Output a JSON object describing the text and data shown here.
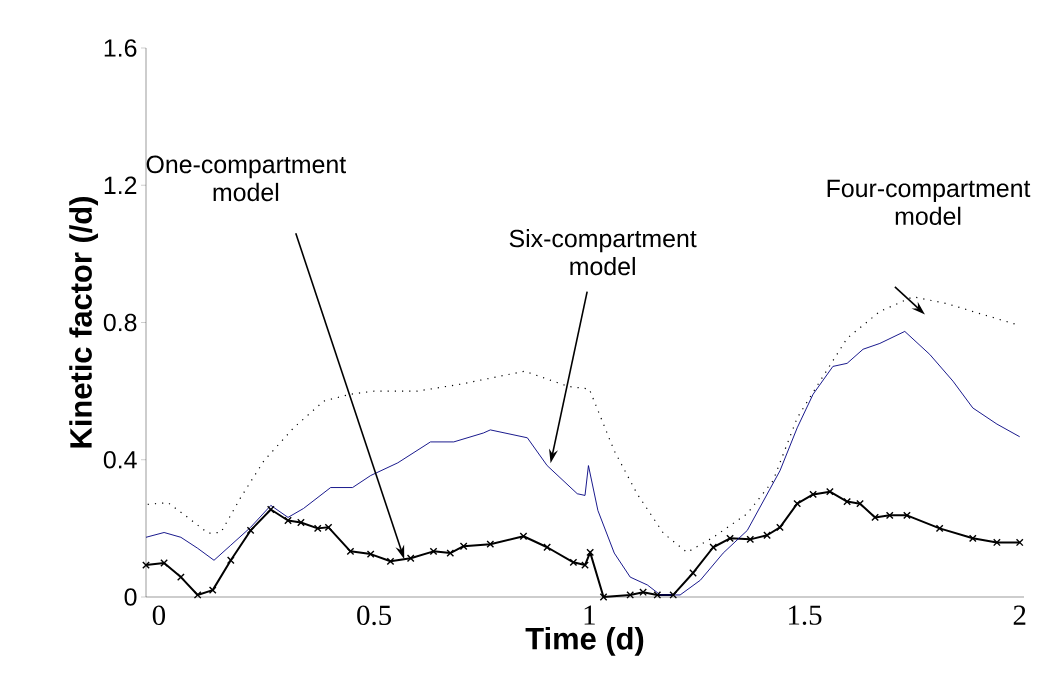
{
  "chart_data": {
    "type": "line",
    "xlabel": "Time (d)",
    "ylabel": "Kinetic factor (/d)",
    "xlim": [
      -0.03,
      2.01
    ],
    "ylim": [
      0,
      1.6
    ],
    "xticks": [
      {
        "value": 0,
        "label": "0"
      },
      {
        "value": 0.5,
        "label": "0.5"
      },
      {
        "value": 1,
        "label": "1"
      },
      {
        "value": 1.5,
        "label": "1.5"
      },
      {
        "value": 2,
        "label": "2"
      }
    ],
    "yticks": [
      {
        "value": 0,
        "label": "0"
      },
      {
        "value": 0.4,
        "label": "0.4"
      },
      {
        "value": 0.8,
        "label": "0.8"
      },
      {
        "value": 1.2,
        "label": "1.2"
      },
      {
        "value": 1.6,
        "label": "1.6"
      }
    ],
    "grid": false,
    "series": [
      {
        "color": "#000000",
        "marker": "cross",
        "line_style": "solid",
        "x": [
          -0.03,
          0.012,
          0.051,
          0.09,
          0.125,
          0.167,
          0.213,
          0.26,
          0.3,
          0.33,
          0.369,
          0.394,
          0.445,
          0.492,
          0.538,
          0.585,
          0.638,
          0.677,
          0.708,
          0.77,
          0.847,
          0.902,
          0.963,
          0.99,
          1.002,
          1.033,
          1.095,
          1.125,
          1.158,
          1.195,
          1.241,
          1.288,
          1.327,
          1.374,
          1.413,
          1.443,
          1.483,
          1.52,
          1.559,
          1.599,
          1.629,
          1.664,
          1.698,
          1.738,
          1.814,
          1.891,
          1.947,
          2.0
        ],
        "values": [
          0.093,
          0.099,
          0.058,
          0.006,
          0.02,
          0.107,
          0.194,
          0.255,
          0.223,
          0.217,
          0.2,
          0.203,
          0.133,
          0.125,
          0.104,
          0.113,
          0.133,
          0.128,
          0.148,
          0.154,
          0.177,
          0.145,
          0.101,
          0.093,
          0.13,
          0.0,
          0.006,
          0.014,
          0.006,
          0.006,
          0.07,
          0.145,
          0.171,
          0.168,
          0.18,
          0.203,
          0.272,
          0.299,
          0.307,
          0.278,
          0.272,
          0.232,
          0.238,
          0.238,
          0.2,
          0.171,
          0.159,
          0.159
        ]
      },
      {
        "color": "#000080",
        "marker": "none",
        "line_style": "solid",
        "x": [
          -0.03,
          0.012,
          0.051,
          0.09,
          0.128,
          0.167,
          0.213,
          0.26,
          0.3,
          0.336,
          0.399,
          0.45,
          0.492,
          0.555,
          0.631,
          0.685,
          0.754,
          0.77,
          0.856,
          0.902,
          0.972,
          0.99,
          0.998,
          1.02,
          1.058,
          1.095,
          1.135,
          1.165,
          1.211,
          1.258,
          1.311,
          1.367,
          1.443,
          1.483,
          1.52,
          1.566,
          1.599,
          1.636,
          1.675,
          1.733,
          1.791,
          1.845,
          1.891,
          1.947,
          2.0
        ],
        "values": [
          0.174,
          0.188,
          0.174,
          0.142,
          0.107,
          0.151,
          0.203,
          0.267,
          0.232,
          0.258,
          0.319,
          0.319,
          0.354,
          0.391,
          0.452,
          0.452,
          0.478,
          0.487,
          0.464,
          0.383,
          0.301,
          0.296,
          0.383,
          0.252,
          0.128,
          0.058,
          0.035,
          0.006,
          0.006,
          0.049,
          0.128,
          0.194,
          0.368,
          0.493,
          0.591,
          0.672,
          0.681,
          0.722,
          0.739,
          0.774,
          0.707,
          0.629,
          0.551,
          0.504,
          0.467
        ]
      },
      {
        "color": "#000000",
        "marker": "none",
        "line_style": "dotted",
        "x": [
          -0.026,
          0.021,
          0.067,
          0.114,
          0.144,
          0.19,
          0.244,
          0.313,
          0.383,
          0.445,
          0.5,
          0.6,
          0.7,
          0.85,
          0.95,
          1.0,
          1.058,
          1.111,
          1.172,
          1.227,
          1.288,
          1.367,
          1.427,
          1.483,
          1.536,
          1.599,
          1.675,
          1.752,
          1.831,
          1.907,
          1.993
        ],
        "values": [
          0.27,
          0.275,
          0.232,
          0.186,
          0.188,
          0.29,
          0.397,
          0.493,
          0.571,
          0.591,
          0.6,
          0.6,
          0.62,
          0.658,
          0.614,
          0.606,
          0.426,
          0.301,
          0.186,
          0.13,
          0.174,
          0.243,
          0.339,
          0.522,
          0.629,
          0.754,
          0.832,
          0.875,
          0.855,
          0.826,
          0.794
        ]
      }
    ],
    "annotations": [
      {
        "text": "One-compartment model",
        "x": 0.57,
        "y": 0.11
      },
      {
        "text": "Six-compartment model",
        "x": 0.91,
        "y": 0.39
      },
      "Four-compartment model"
    ]
  }
}
